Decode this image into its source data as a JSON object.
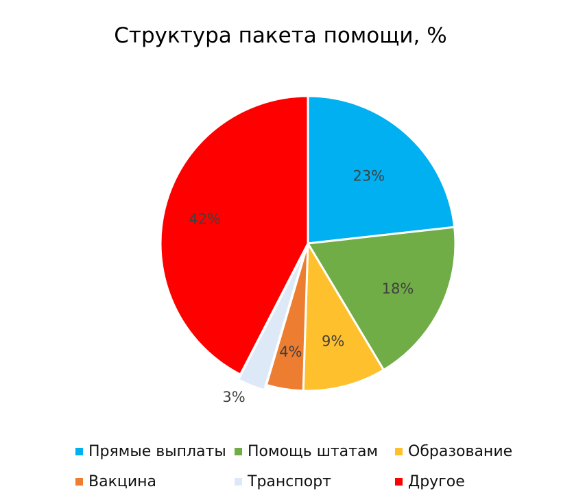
{
  "chart_data": {
    "type": "pie",
    "title": "Структура пакета помощи, %",
    "slices": [
      {
        "name": "Прямые выплаты",
        "value": 23,
        "label": "23%",
        "color": "#00b0f0"
      },
      {
        "name": "Помощь штатам",
        "value": 18,
        "label": "18%",
        "color": "#70ad47"
      },
      {
        "name": "Образование",
        "value": 9,
        "label": "9%",
        "color": "#ffc02d"
      },
      {
        "name": "Вакцина",
        "value": 4,
        "label": "4%",
        "color": "#ed7d31"
      },
      {
        "name": "Транспорт",
        "value": 3,
        "label": "3%",
        "color": "#dde9f7"
      },
      {
        "name": "Другое",
        "value": 42,
        "label": "42%",
        "color": "#ff0000"
      }
    ],
    "legend_position": "bottom",
    "data_labels": true
  }
}
